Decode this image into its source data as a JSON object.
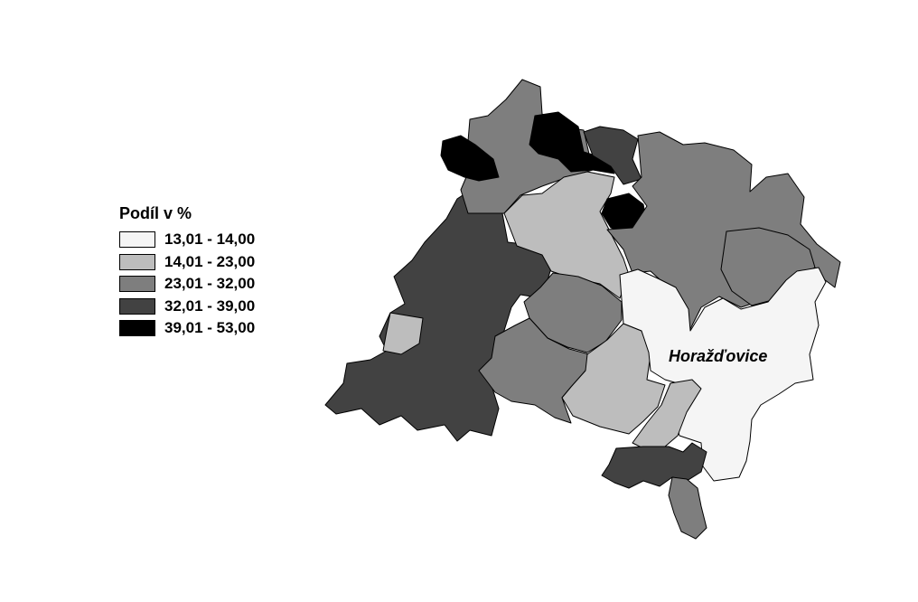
{
  "legend": {
    "title": "Podíl v %",
    "classes": [
      {
        "label": "13,01 - 14,00",
        "color": "#f5f5f5"
      },
      {
        "label": "14,01 - 23,00",
        "color": "#bdbdbd"
      },
      {
        "label": "23,01 - 32,00",
        "color": "#7e7e7e"
      },
      {
        "label": "32,01 - 39,00",
        "color": "#424242"
      },
      {
        "label": "39,01 - 53,00",
        "color": "#000000"
      }
    ]
  },
  "map": {
    "place_label": "Horažďovice"
  }
}
